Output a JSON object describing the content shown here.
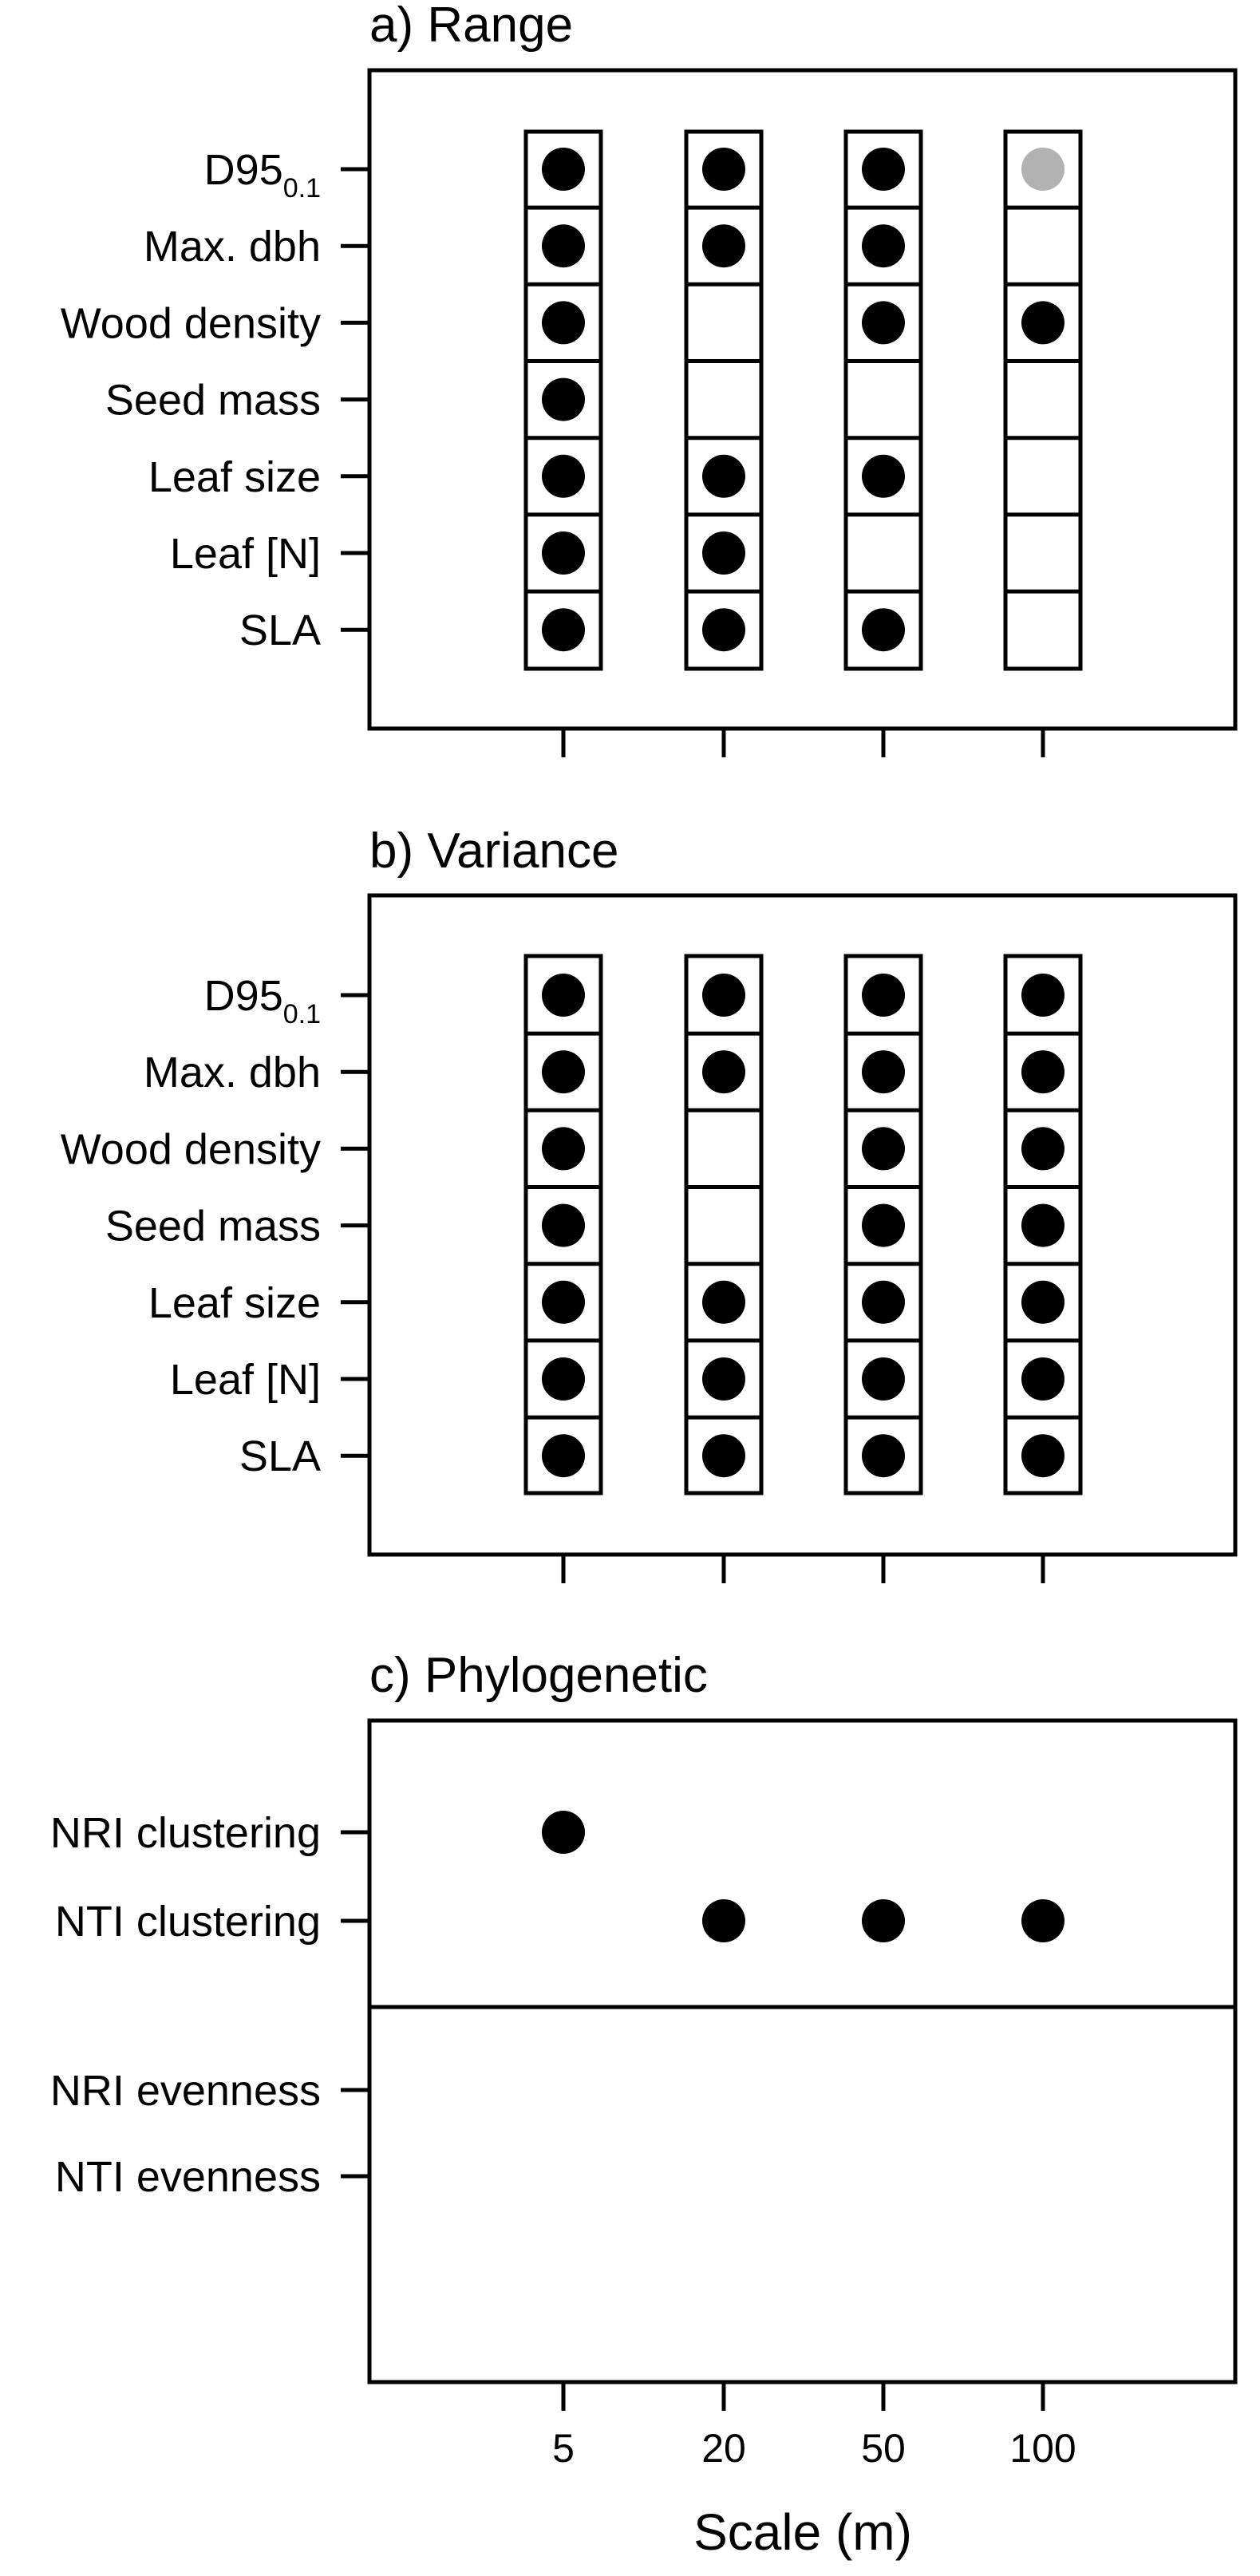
{
  "chart_data": [
    {
      "type": "table",
      "title": "a) Range",
      "categories": [
        "5",
        "20",
        "50",
        "100"
      ],
      "rows": [
        {
          "label": "D95",
          "label_sub": "0.1",
          "values": [
            1,
            1,
            1,
            2
          ]
        },
        {
          "label": "Max. dbh",
          "values": [
            1,
            1,
            1,
            0
          ]
        },
        {
          "label": "Wood density",
          "values": [
            1,
            0,
            1,
            1
          ]
        },
        {
          "label": "Seed mass",
          "values": [
            1,
            0,
            0,
            0
          ]
        },
        {
          "label": "Leaf size",
          "values": [
            1,
            1,
            1,
            0
          ]
        },
        {
          "label": "Leaf [N]",
          "values": [
            1,
            1,
            0,
            0
          ]
        },
        {
          "label": "SLA",
          "values": [
            1,
            1,
            1,
            0
          ]
        }
      ],
      "grid": true,
      "boxed_cells": true
    },
    {
      "type": "table",
      "title": "b) Variance",
      "categories": [
        "5",
        "20",
        "50",
        "100"
      ],
      "rows": [
        {
          "label": "D95",
          "label_sub": "0.1",
          "values": [
            1,
            1,
            1,
            1
          ]
        },
        {
          "label": "Max. dbh",
          "values": [
            1,
            1,
            1,
            1
          ]
        },
        {
          "label": "Wood density",
          "values": [
            1,
            0,
            1,
            1
          ]
        },
        {
          "label": "Seed mass",
          "values": [
            1,
            0,
            1,
            1
          ]
        },
        {
          "label": "Leaf size",
          "values": [
            1,
            1,
            1,
            1
          ]
        },
        {
          "label": "Leaf [N]",
          "values": [
            1,
            1,
            1,
            1
          ]
        },
        {
          "label": "SLA",
          "values": [
            1,
            1,
            1,
            1
          ]
        }
      ],
      "grid": true,
      "boxed_cells": true
    },
    {
      "type": "scatter",
      "title": "c) Phylogenetic",
      "categories": [
        "5",
        "20",
        "50",
        "100"
      ],
      "rows": [
        {
          "label": "NRI clustering",
          "values": [
            1,
            0,
            0,
            0
          ]
        },
        {
          "label": "NTI clustering",
          "values": [
            0,
            1,
            1,
            1
          ]
        },
        {
          "label": "NRI evenness",
          "values": [
            0,
            0,
            0,
            0
          ]
        },
        {
          "label": "NTI evenness",
          "values": [
            0,
            0,
            0,
            0
          ]
        }
      ],
      "divider_after_row": 1,
      "xlabel": "Scale (m)",
      "grid": false,
      "boxed_cells": false
    }
  ],
  "colors": {
    "significant": "#000000",
    "marginal": "#b2b2b2",
    "frame": "#000000"
  }
}
